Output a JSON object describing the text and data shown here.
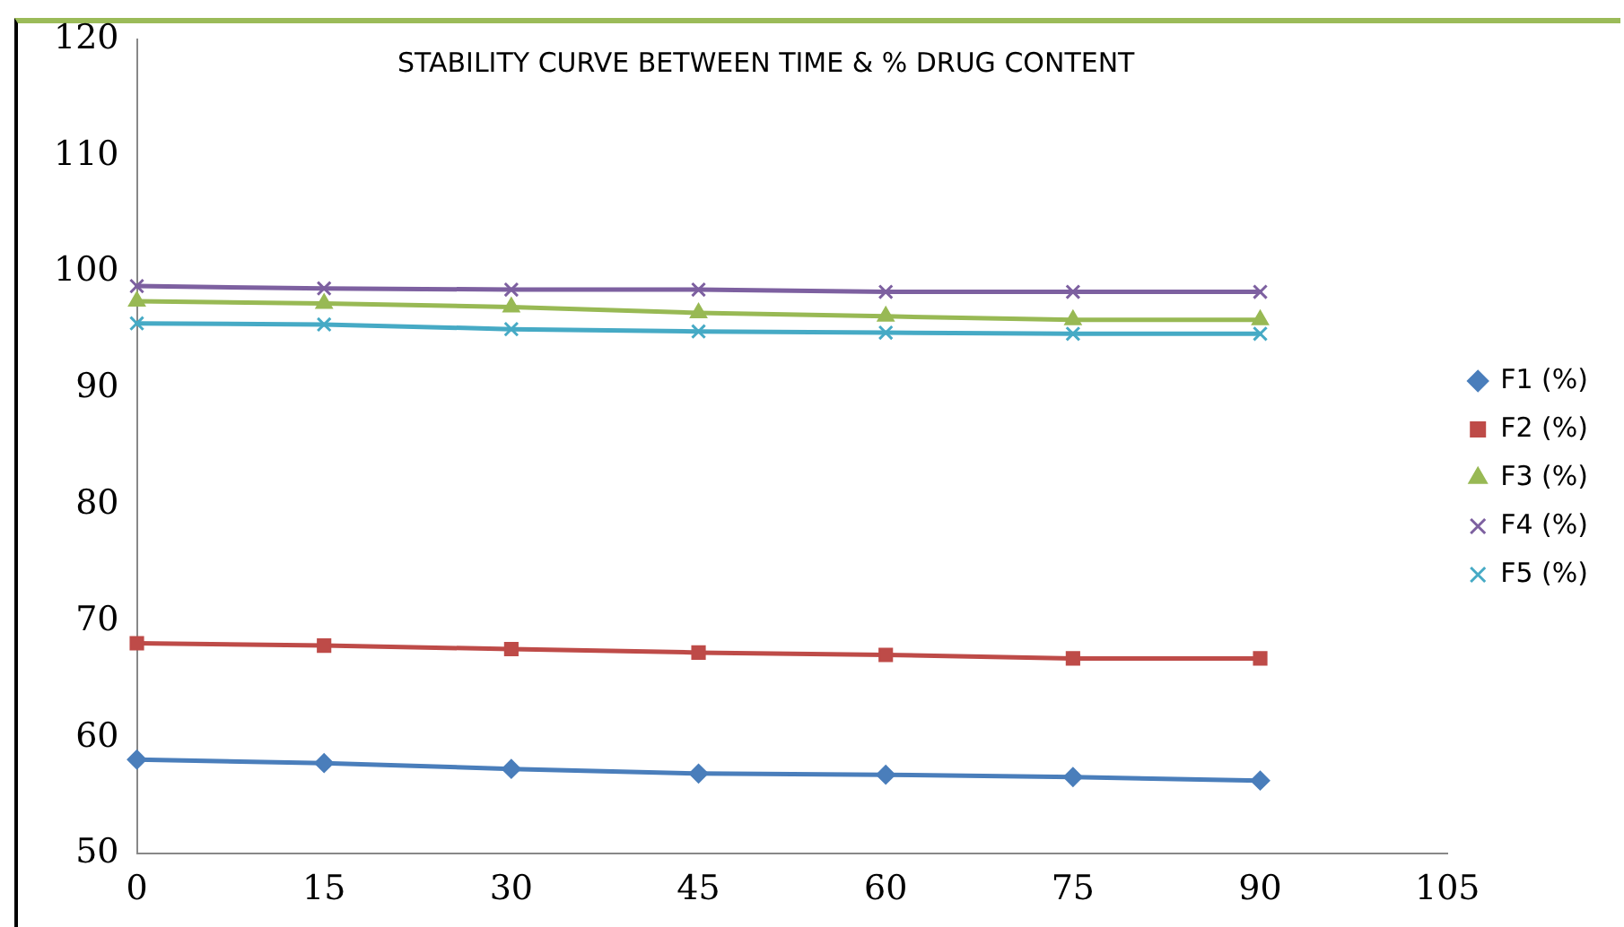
{
  "chart_data": {
    "type": "line",
    "title": "STABILITY CURVE BETWEEN TIME & % DRUG CONTENT",
    "x": [
      0,
      15,
      30,
      45,
      60,
      75,
      90
    ],
    "series": [
      {
        "name": "F1 (%)",
        "color": "#4a7ebb",
        "marker": "diamond",
        "values": [
          58.1,
          57.8,
          57.3,
          56.9,
          56.8,
          56.6,
          56.3
        ]
      },
      {
        "name": "F2 (%)",
        "color": "#be4b48",
        "marker": "square",
        "values": [
          68.1,
          67.9,
          67.6,
          67.3,
          67.1,
          66.8,
          66.8
        ]
      },
      {
        "name": "F3 (%)",
        "color": "#98b954",
        "marker": "triangle",
        "values": [
          97.5,
          97.3,
          97.0,
          96.5,
          96.2,
          95.9,
          95.9
        ]
      },
      {
        "name": "F4 (%)",
        "color": "#7d60a0",
        "marker": "cross",
        "values": [
          98.8,
          98.6,
          98.5,
          98.5,
          98.3,
          98.3,
          98.3
        ]
      },
      {
        "name": "F5 (%)",
        "color": "#46aac5",
        "marker": "cross",
        "values": [
          95.6,
          95.5,
          95.1,
          94.9,
          94.8,
          94.7,
          94.7
        ]
      }
    ],
    "xlim": [
      0,
      105
    ],
    "xticks": [
      0,
      15,
      30,
      45,
      60,
      75,
      90,
      105
    ],
    "ylim": [
      50,
      120
    ],
    "yticks": [
      50,
      60,
      70,
      80,
      90,
      100,
      110,
      120
    ],
    "grid": false,
    "legend": "right",
    "line_style": "solid"
  }
}
